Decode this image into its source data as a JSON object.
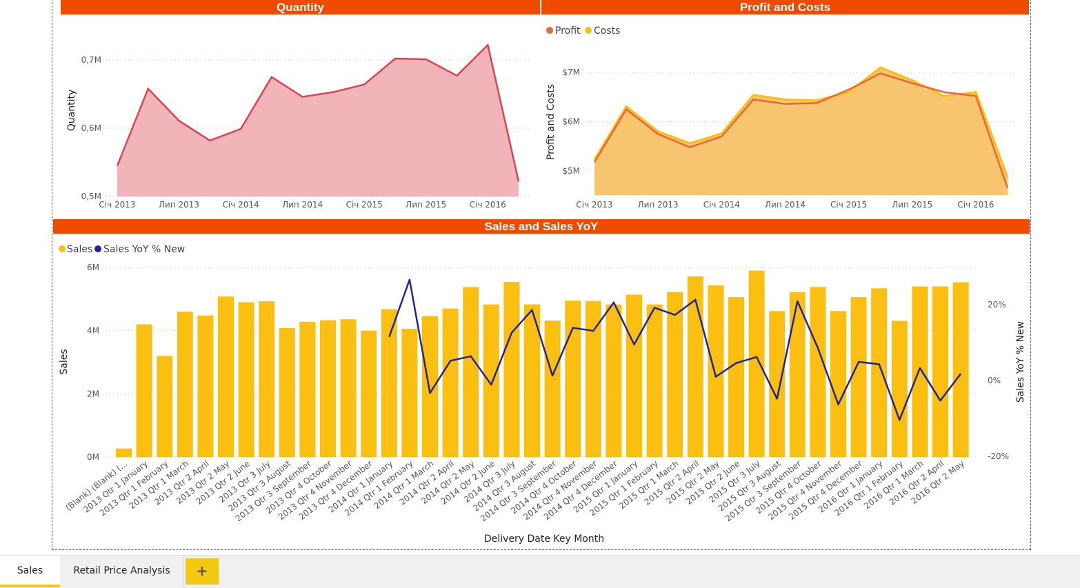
{
  "colors": {
    "band": "#f04a00",
    "quantity_fill": "#f0b4b9",
    "quantity_line": "#d94452",
    "profit": "#e8673a",
    "costs": "#fbbf12",
    "area_fill": "#f7c470",
    "sales_bar": "#fbbf12",
    "yoy_line": "#1f2596",
    "tab_accent": "#f2c811"
  },
  "panels": {
    "quantity_title": "Quantity",
    "profit_title": "Profit and Costs",
    "sales_title": "Sales and Sales YoY"
  },
  "tabs": {
    "items": [
      "Sales",
      "Retail Price Analysis"
    ],
    "active": "Sales",
    "add_label": "+"
  },
  "chart_data": [
    {
      "type": "area",
      "title": "Quantity",
      "ylabel": "Quantity",
      "ylim": [
        500000,
        750000
      ],
      "y_ticks": [
        "0,5M",
        "0,6M",
        "0,7M"
      ],
      "x_ticks": [
        "Січ 2013",
        "Лип 2013",
        "Січ 2014",
        "Лип 2014",
        "Січ 2015",
        "Лип 2015",
        "Січ 2016"
      ],
      "grid": true,
      "series": [
        {
          "values": [
            545000,
            658000,
            611000,
            582000,
            599000,
            675000,
            646000,
            653000,
            664000,
            702000,
            701000,
            677000,
            722000,
            522000
          ]
        }
      ]
    },
    {
      "type": "area",
      "title": "Profit and Costs",
      "ylabel": "Profit and Costs",
      "ylim": [
        4500000,
        7500000
      ],
      "y_ticks": [
        "$5M",
        "$6M",
        "$7M"
      ],
      "x_ticks": [
        "Січ 2013",
        "Лип 2013",
        "Січ 2014",
        "Лип 2014",
        "Січ 2015",
        "Лип 2015",
        "Січ 2016"
      ],
      "legend": "top-left",
      "grid": true,
      "series": [
        {
          "name": "Profit",
          "values": [
            5180000,
            6250000,
            5750000,
            5480000,
            5700000,
            6450000,
            6360000,
            6380000,
            6650000,
            6980000,
            6780000,
            6600000,
            6520000,
            4650000
          ]
        },
        {
          "name": "Costs",
          "values": [
            5230000,
            6310000,
            5800000,
            5560000,
            5760000,
            6540000,
            6450000,
            6430000,
            6600000,
            7100000,
            6840000,
            6520000,
            6600000,
            4870000
          ]
        }
      ]
    },
    {
      "type": "bar",
      "title": "Sales and Sales YoY",
      "xlabel": "Delivery Date Key Month",
      "ylabel": "Sales",
      "y2label": "Sales YoY % New",
      "ylim": [
        0,
        6000000
      ],
      "y_ticks": [
        "0M",
        "2M",
        "4M",
        "6M"
      ],
      "y2lim": [
        -20,
        30
      ],
      "y2_ticks": [
        "-20%",
        "0%",
        "20%"
      ],
      "legend": "top-left",
      "categories": [
        "(Blank) (Blank) (...",
        "2013 Qtr 1 January",
        "2013 Qtr 1 February",
        "2013 Qtr 1 March",
        "2013 Qtr 2 April",
        "2013 Qtr 2 May",
        "2013 Qtr 2 June",
        "2013 Qtr 3 July",
        "2013 Qtr 3 August",
        "2013 Qtr 3 September",
        "2013 Qtr 4 October",
        "2013 Qtr 4 November",
        "2013 Qtr 4 December",
        "2014 Qtr 1 January",
        "2014 Qtr 1 February",
        "2014 Qtr 1 March",
        "2014 Qtr 2 April",
        "2014 Qtr 2 May",
        "2014 Qtr 2 June",
        "2014 Qtr 3 July",
        "2014 Qtr 3 August",
        "2014 Qtr 3 September",
        "2014 Qtr 4 October",
        "2014 Qtr 4 November",
        "2014 Qtr 4 December",
        "2015 Qtr 1 January",
        "2015 Qtr 1 February",
        "2015 Qtr 1 March",
        "2015 Qtr 2 April",
        "2015 Qtr 2 May",
        "2015 Qtr 2 June",
        "2015 Qtr 3 July",
        "2015 Qtr 3 August",
        "2015 Qtr 3 September",
        "2015 Qtr 4 October",
        "2015 Qtr 4 November",
        "2015 Qtr 4 December",
        "2016 Qtr 1 January",
        "2016 Qtr 1 February",
        "2016 Qtr 1 March",
        "2016 Qtr 2 April",
        "2016 Qtr 2 May"
      ],
      "series": [
        {
          "name": "Sales",
          "values": [
            270000,
            4200000,
            3200000,
            4600000,
            4480000,
            5080000,
            4900000,
            4930000,
            4080000,
            4280000,
            4330000,
            4360000,
            4000000,
            4680000,
            4060000,
            4460000,
            4700000,
            5380000,
            4830000,
            5540000,
            4830000,
            4320000,
            4950000,
            4940000,
            4830000,
            5140000,
            4830000,
            5220000,
            5720000,
            5430000,
            5060000,
            5900000,
            4620000,
            5220000,
            5380000,
            4620000,
            5060000,
            5340000,
            4310000,
            5400000,
            5400000,
            5530000
          ]
        },
        {
          "name": "Sales YoY % New",
          "values": [
            null,
            null,
            null,
            null,
            null,
            null,
            null,
            null,
            null,
            null,
            null,
            null,
            null,
            11.5,
            26.6,
            -3.3,
            5.2,
            6.4,
            -1.1,
            12.6,
            18.6,
            1.3,
            13.9,
            13.1,
            20.6,
            9.5,
            19.2,
            17.3,
            21.3,
            1.0,
            4.6,
            6.2,
            -4.8,
            20.9,
            8.6,
            -6.3,
            4.9,
            4.3,
            -10.4,
            3.3,
            -5.3,
            1.8
          ]
        }
      ]
    }
  ]
}
